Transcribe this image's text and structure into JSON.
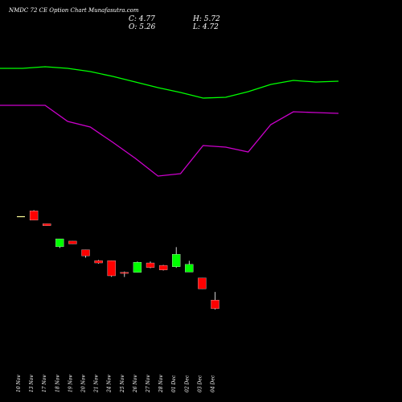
{
  "header": {
    "title": "NMDC 72 CE Option Chart Munafasutra.com",
    "close": "C: 4.77",
    "high": "H: 5.72",
    "open": "O: 5.26",
    "low": "L: 4.72"
  },
  "chart_data": {
    "type": "candlestick",
    "categories": [
      "10 Nov",
      "13 Nov",
      "17 Nov",
      "18 Nov",
      "19 Nov",
      "20 Nov",
      "21 Nov",
      "24 Nov",
      "25 Nov",
      "26 Nov",
      "27 Nov",
      "28 Nov",
      "01 Dec",
      "02 Dec",
      "03 Dec",
      "04 Dec"
    ],
    "candles": [
      {
        "open": 10.0,
        "high": 10.0,
        "low": 10.0,
        "close": 10.0
      },
      {
        "open": 10.33,
        "high": 10.37,
        "low": 9.8,
        "close": 9.8
      },
      {
        "open": 9.6,
        "high": 9.6,
        "low": 9.49,
        "close": 9.49
      },
      {
        "open": 8.29,
        "high": 8.74,
        "low": 8.22,
        "close": 8.74
      },
      {
        "open": 8.61,
        "high": 8.61,
        "low": 8.45,
        "close": 8.45
      },
      {
        "open": 8.12,
        "high": 8.12,
        "low": 7.67,
        "close": 7.77
      },
      {
        "open": 7.5,
        "high": 7.54,
        "low": 7.33,
        "close": 7.37
      },
      {
        "open": 7.5,
        "high": 7.5,
        "low": 6.58,
        "close": 6.64
      },
      {
        "open": 6.83,
        "high": 6.88,
        "low": 6.57,
        "close": 6.78
      },
      {
        "open": 6.83,
        "high": 7.45,
        "low": 6.83,
        "close": 7.41
      },
      {
        "open": 7.37,
        "high": 7.45,
        "low": 7.07,
        "close": 7.11
      },
      {
        "open": 7.23,
        "high": 7.26,
        "low": 6.94,
        "close": 6.97
      },
      {
        "open": 7.15,
        "high": 8.27,
        "low": 7.09,
        "close": 7.86
      },
      {
        "open": 6.85,
        "high": 7.49,
        "low": 6.85,
        "close": 7.29
      },
      {
        "open": 6.51,
        "high": 6.51,
        "low": 5.9,
        "close": 5.9
      },
      {
        "open": 5.26,
        "high": 5.72,
        "low": 4.72,
        "close": 4.77
      }
    ],
    "bands": [
      {
        "color": "#00ff00",
        "values": [
          100,
          100,
          98,
          100,
          104,
          110,
          117,
          124,
          130,
          137,
          136,
          129,
          120,
          115,
          117,
          116
        ]
      },
      {
        "color": "#cc00cc",
        "values": [
          146,
          146,
          146,
          166,
          173,
          192,
          212,
          234,
          231,
          196,
          198,
          204,
          170,
          154,
          155,
          156
        ]
      }
    ],
    "band_x_positions_hint": "evenly spaced",
    "colors": {
      "up": "#00ff00",
      "down": "#ff0000",
      "flat": "#ffff99",
      "wick": "#ffffff"
    }
  }
}
